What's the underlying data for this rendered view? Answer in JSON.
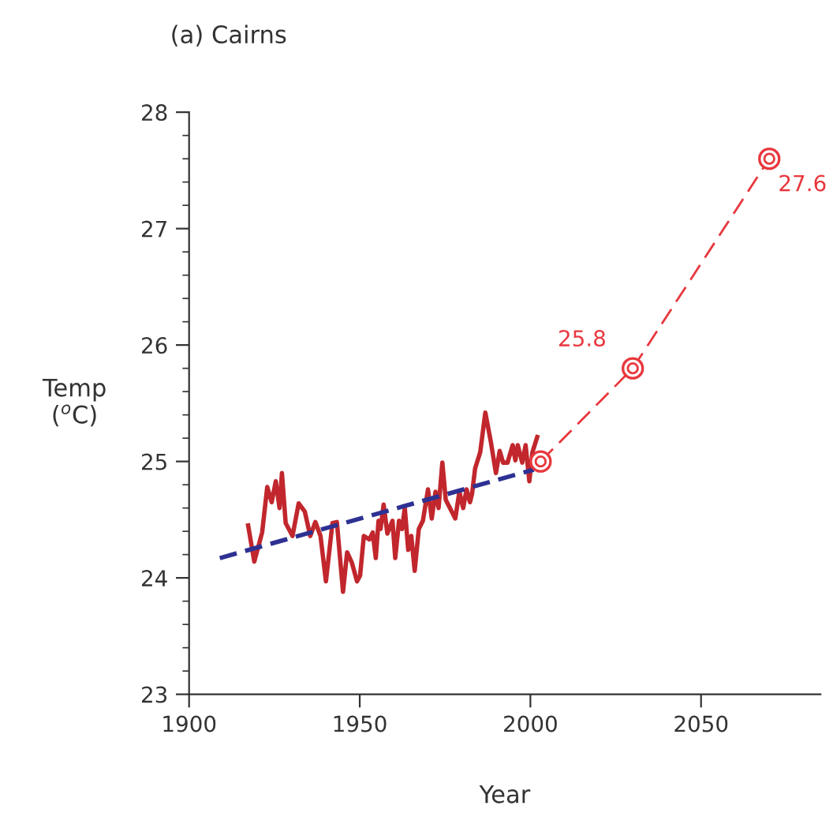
{
  "chart_data": {
    "type": "line",
    "title": "(a) Cairns",
    "xlabel": "Year",
    "ylabel": "Temp\n($^{o}$C)",
    "xlim": [
      1900,
      2085
    ],
    "ylim": [
      23,
      28
    ],
    "xticks": [
      1900,
      1950,
      2000,
      2050
    ],
    "yticks": [
      23,
      24,
      25,
      26,
      27,
      28
    ],
    "grid": false,
    "legend": false,
    "series": [
      {
        "color": "#c1272d",
        "line_style": "solid",
        "marker": "none",
        "x": [
          1917.3,
          1919.1,
          1921.4,
          1922.9,
          1924.2,
          1925.4,
          1926.5,
          1927.2,
          1928.3,
          1930.3,
          1932.1,
          1933.9,
          1935.5,
          1937.0,
          1938.5,
          1940.1,
          1942.0,
          1943.3,
          1945.1,
          1946.3,
          1947.7,
          1949.2,
          1950.1,
          1951.2,
          1952.8,
          1953.8,
          1954.7,
          1955.5,
          1956.1,
          1957.0,
          1958.1,
          1959.6,
          1960.4,
          1961.5,
          1962.4,
          1963.2,
          1964.2,
          1965.1,
          1966.1,
          1967.3,
          1968.5,
          1970.0,
          1971.1,
          1972.2,
          1973.1,
          1974.2,
          1975.2,
          1978.0,
          1979.2,
          1980.3,
          1981.3,
          1982.3,
          1982.9,
          1983.8,
          1985.3,
          1986.8,
          1988.4,
          1989.9,
          1991.0,
          1992.0,
          1993.3,
          1994.8,
          1995.6,
          1996.3,
          1997.6,
          1998.6,
          1999.7,
          2000.6,
          2002.0
        ],
        "values": [
          24.45,
          24.14,
          24.39,
          24.78,
          24.65,
          24.83,
          24.6,
          24.9,
          24.47,
          24.36,
          24.64,
          24.57,
          24.36,
          24.48,
          24.36,
          23.97,
          24.47,
          24.48,
          23.88,
          24.22,
          24.13,
          23.97,
          24.02,
          24.36,
          24.33,
          24.39,
          24.17,
          24.49,
          24.42,
          24.63,
          24.38,
          24.49,
          24.17,
          24.49,
          24.42,
          24.6,
          24.24,
          24.36,
          24.06,
          24.42,
          24.49,
          24.76,
          24.51,
          24.74,
          24.6,
          24.99,
          24.67,
          24.51,
          24.74,
          24.6,
          24.76,
          24.65,
          24.72,
          24.94,
          25.08,
          25.42,
          25.17,
          24.9,
          25.09,
          24.99,
          24.99,
          25.14,
          25.01,
          25.14,
          24.99,
          25.14,
          24.83,
          25.08,
          25.21
        ]
      },
      {
        "color": "#2e3192",
        "line_style": "dashed",
        "marker": "none",
        "x": [
          1909,
          2001
        ],
        "values": [
          24.17,
          24.93
        ]
      },
      {
        "color": "#e8373e",
        "line_style": "dashed",
        "marker": "circle",
        "x": [
          2003,
          2030,
          2070
        ],
        "values": [
          25.0,
          25.8,
          27.6
        ],
        "value_labels": [
          null,
          "25.8",
          "27.6"
        ]
      }
    ]
  }
}
